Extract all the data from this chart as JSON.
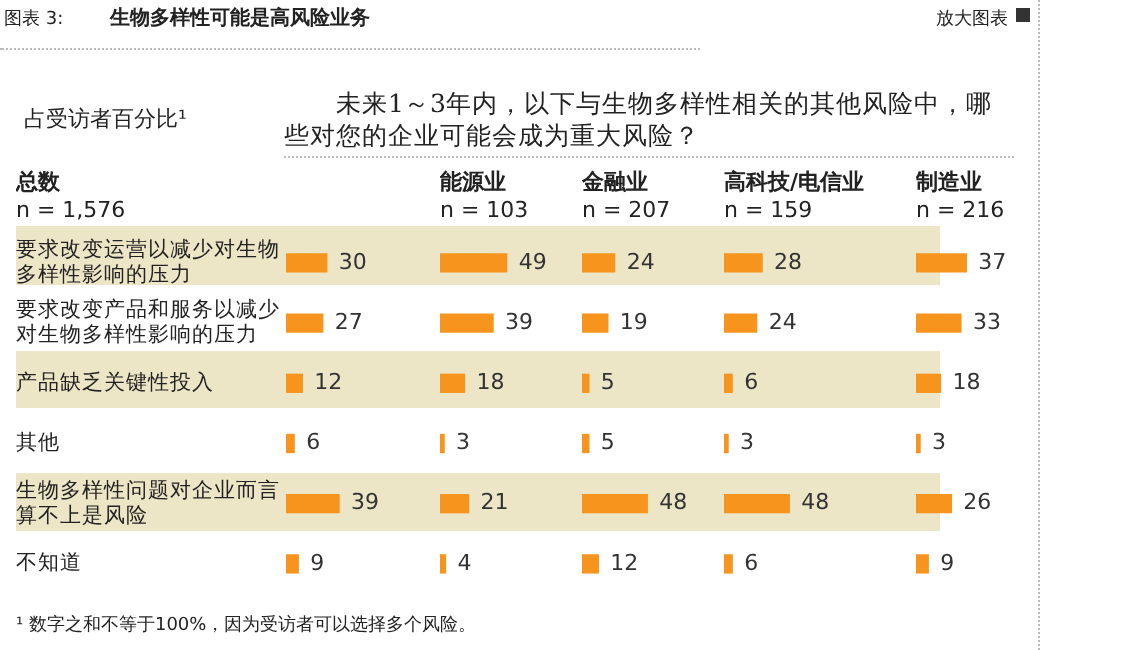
{
  "chart_data": [
    {
      "type": "bar",
      "orientation": "horizontal",
      "title": "总数",
      "subtitle": "n = 1,576",
      "categories": [
        "要求改变运营以减少对生物多样性影响的压力",
        "要求改变产品和服务以减少对生物多样性影响的压力",
        "产品缺乏关键性投入",
        "其他",
        "生物多样性问题对企业而言算不上是风险",
        "不知道"
      ],
      "values": [
        30,
        27,
        12,
        6,
        39,
        9
      ],
      "color": "#f7941d",
      "data_labels": true,
      "tick_labels": "y",
      "legend": false,
      "annotations": [
        "图表 3:",
        "生物多样性可能是高风险业务",
        "放大图表",
        "占受访者百分比¹",
        "未来1～3年内，以下与生物多样性相关的其他风险中，哪些对您的企业可能会成为重大风险？",
        "¹ 数字之和不等于100%，因为受访者可以选择多个风险。"
      ]
    },
    {
      "type": "bar",
      "orientation": "horizontal",
      "title": "能源业",
      "subtitle": "n = 103",
      "categories": [
        "要求改变运营以减少对生物多样性影响的压力",
        "要求改变产品和服务以减少对生物多样性影响的压力",
        "产品缺乏关键性投入",
        "其他",
        "生物多样性问题对企业而言算不上是风险",
        "不知道"
      ],
      "values": [
        49,
        39,
        18,
        3,
        21,
        4
      ],
      "color": "#f7941d",
      "data_labels": true,
      "tick_labels": false,
      "legend": false
    },
    {
      "type": "bar",
      "orientation": "horizontal",
      "title": "金融业",
      "subtitle": "n = 207",
      "categories": [
        "要求改变运营以减少对生物多样性影响的压力",
        "要求改变产品和服务以减少对生物多样性影响的压力",
        "产品缺乏关键性投入",
        "其他",
        "生物多样性问题对企业而言算不上是风险",
        "不知道"
      ],
      "values": [
        24,
        19,
        5,
        5,
        48,
        12
      ],
      "color": "#f7941d",
      "data_labels": true,
      "tick_labels": false,
      "legend": false
    },
    {
      "type": "bar",
      "orientation": "horizontal",
      "title": "高科技/电信业",
      "subtitle": "n = 159",
      "categories": [
        "要求改变运营以减少对生物多样性影响的压力",
        "要求改变产品和服务以减少对生物多样性影响的压力",
        "产品缺乏关键性投入",
        "其他",
        "生物多样性问题对企业而言算不上是风险",
        "不知道"
      ],
      "values": [
        28,
        24,
        6,
        3,
        48,
        6
      ],
      "color": "#f7941d",
      "data_labels": true,
      "tick_labels": false,
      "legend": false
    },
    {
      "type": "bar",
      "orientation": "horizontal",
      "title": "制造业",
      "subtitle": "n = 216",
      "categories": [
        "要求改变运营以减少对生物多样性影响的压力",
        "要求改变产品和服务以减少对生物多样性影响的压力",
        "产品缺乏关键性投入",
        "其他",
        "生物多样性问题对企业而言算不上是风险",
        "不知道"
      ],
      "values": [
        37,
        33,
        18,
        3,
        26,
        9
      ],
      "color": "#f7941d",
      "data_labels": true,
      "tick_labels": false,
      "legend": false
    }
  ]
}
